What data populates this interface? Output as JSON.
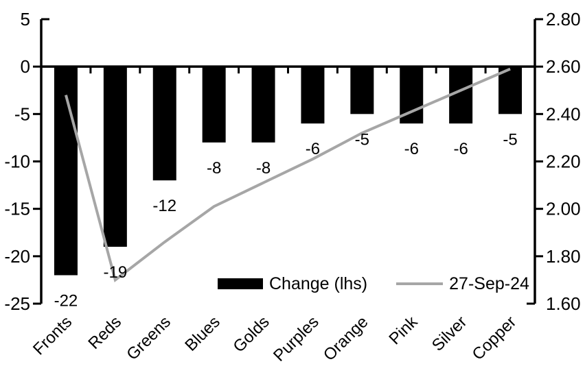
{
  "chart_data": {
    "type": "combo_bar_line",
    "title": "",
    "categories": [
      "Fronts",
      "Reds",
      "Greens",
      "Blues",
      "Golds",
      "Purples",
      "Orange",
      "Pink",
      "Silver",
      "Copper"
    ],
    "series": [
      {
        "name": "Change (lhs)",
        "type": "bar",
        "axis": "left",
        "color": "#000000",
        "values": [
          -22,
          -19,
          -12,
          -8,
          -8,
          -6,
          -5,
          -6,
          -6,
          -5
        ],
        "data_labels": [
          "-22",
          "-19",
          "-12",
          "-8",
          "-8",
          "-6",
          "-5",
          "-6",
          "-6",
          "-5"
        ]
      },
      {
        "name": "27-Sep-24",
        "type": "line",
        "axis": "right",
        "color": "#a6a6a6",
        "values": [
          2.48,
          1.7,
          1.86,
          2.01,
          2.11,
          2.21,
          2.32,
          2.41,
          2.5,
          2.59
        ]
      }
    ],
    "axes": {
      "left": {
        "min": -25,
        "max": 5,
        "ticks": [
          5,
          0,
          -5,
          -10,
          -15,
          -20,
          -25
        ]
      },
      "right": {
        "min": 1.6,
        "max": 2.8,
        "ticks": [
          2.8,
          2.6,
          2.4,
          2.2,
          2.0,
          1.8,
          1.6
        ]
      }
    },
    "legend": {
      "position": "bottom-center-inside",
      "entries": [
        "Change (lhs)",
        "27-Sep-24"
      ]
    },
    "grid": false
  }
}
